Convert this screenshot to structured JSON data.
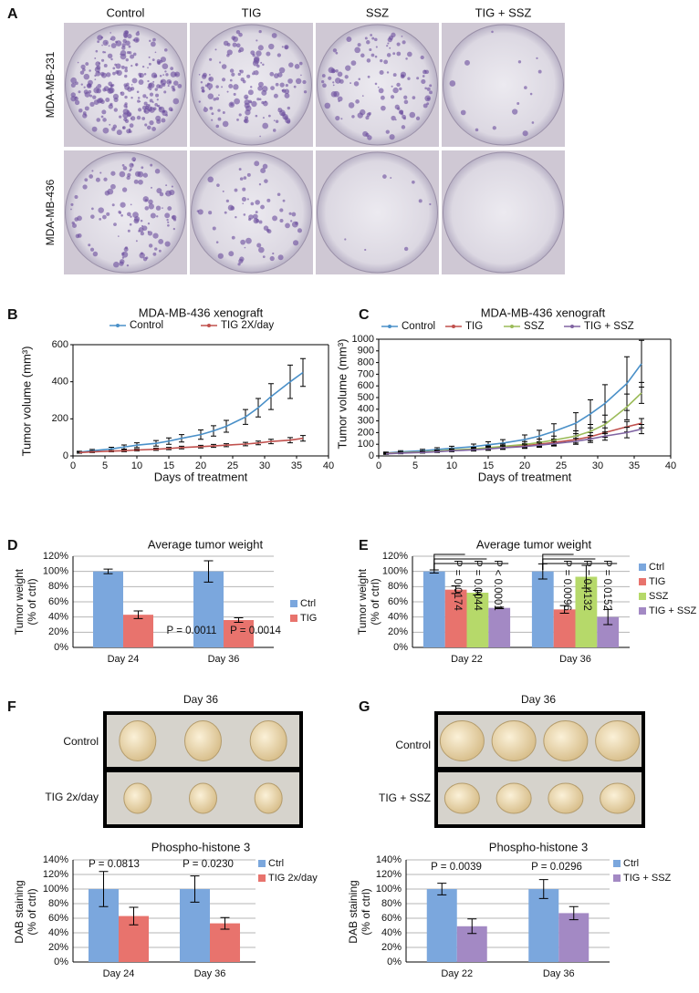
{
  "panel_a": {
    "label": "A",
    "columns": [
      "Control",
      "TIG",
      "SSZ",
      "TIG + SSZ"
    ],
    "rows": [
      "MDA-MB-231",
      "MDA-MB-436"
    ]
  },
  "panel_f": {
    "label": "F",
    "title": "Day 36",
    "rows": [
      "Control",
      "TIG 2x/day"
    ]
  },
  "panel_g": {
    "label": "G",
    "title": "Day 36",
    "rows": [
      "Control",
      "TIG + SSZ"
    ]
  },
  "chart_data": [
    {
      "type": "line",
      "panel": "B",
      "title": "MDA-MB-436 xenograft",
      "xlabel": "Days of treatment",
      "ylabel": "Tumor volume (mm³)",
      "x": [
        1,
        3,
        6,
        8,
        10,
        13,
        15,
        17,
        20,
        22,
        24,
        27,
        29,
        31,
        34,
        36
      ],
      "series": [
        {
          "name": "Control",
          "color": "#4a90c8",
          "values": [
            20,
            28,
            38,
            48,
            58,
            68,
            80,
            95,
            115,
            135,
            160,
            210,
            260,
            320,
            400,
            450
          ],
          "errors": [
            5,
            7,
            9,
            11,
            13,
            15,
            17,
            20,
            25,
            28,
            32,
            40,
            50,
            70,
            90,
            75
          ]
        },
        {
          "name": "TIG 2X/day",
          "color": "#c0504d",
          "values": [
            18,
            22,
            26,
            28,
            32,
            36,
            40,
            45,
            50,
            54,
            58,
            64,
            70,
            78,
            85,
            95
          ],
          "errors": [
            3,
            4,
            4,
            5,
            5,
            6,
            6,
            7,
            7,
            8,
            8,
            9,
            10,
            12,
            14,
            15
          ]
        }
      ],
      "xlim": [
        0,
        40
      ],
      "xticks": [
        0,
        5,
        10,
        15,
        20,
        25,
        30,
        35,
        40
      ],
      "ylim": [
        0,
        600
      ],
      "yticks": [
        0,
        200,
        400,
        600
      ],
      "legend": "top",
      "grid": false
    },
    {
      "type": "line",
      "panel": "C",
      "title": "MDA-MB-436 xenograft",
      "xlabel": "Days of treatment",
      "ylabel": "Tumor volume (mm³)",
      "x": [
        1,
        3,
        6,
        8,
        10,
        13,
        15,
        17,
        20,
        22,
        24,
        27,
        29,
        31,
        34,
        36
      ],
      "series": [
        {
          "name": "Control",
          "color": "#4a90c8",
          "values": [
            25,
            35,
            45,
            55,
            65,
            80,
            95,
            110,
            140,
            170,
            210,
            280,
            360,
            450,
            620,
            790
          ],
          "errors": [
            8,
            10,
            12,
            15,
            18,
            22,
            26,
            30,
            40,
            50,
            65,
            90,
            120,
            160,
            230,
            200
          ]
        },
        {
          "name": "TIG",
          "color": "#c0504d",
          "values": [
            22,
            28,
            34,
            40,
            48,
            56,
            65,
            75,
            88,
            100,
            115,
            140,
            165,
            200,
            250,
            280
          ],
          "errors": [
            5,
            6,
            7,
            8,
            10,
            12,
            14,
            16,
            18,
            22,
            25,
            30,
            35,
            40,
            45,
            40
          ]
        },
        {
          "name": "SSZ",
          "color": "#9bbb59",
          "values": [
            20,
            27,
            34,
            42,
            50,
            60,
            70,
            82,
            98,
            115,
            135,
            170,
            210,
            270,
            420,
            540
          ],
          "errors": [
            5,
            6,
            8,
            10,
            12,
            14,
            16,
            20,
            25,
            30,
            35,
            45,
            60,
            80,
            110,
            90
          ]
        },
        {
          "name": "TIG + SSZ",
          "color": "#8064a2",
          "values": [
            18,
            24,
            30,
            36,
            44,
            52,
            60,
            70,
            80,
            92,
            105,
            125,
            145,
            170,
            200,
            230
          ],
          "errors": [
            4,
            5,
            6,
            7,
            8,
            10,
            12,
            14,
            16,
            18,
            20,
            25,
            30,
            35,
            45,
            40
          ]
        }
      ],
      "xlim": [
        0,
        40
      ],
      "xticks": [
        0,
        5,
        10,
        15,
        20,
        25,
        30,
        35,
        40
      ],
      "ylim": [
        0,
        1000
      ],
      "yticks": [
        0,
        100,
        200,
        300,
        400,
        500,
        600,
        700,
        800,
        900,
        1000
      ],
      "legend": "top",
      "grid": false
    },
    {
      "type": "bar",
      "panel": "D",
      "title": "Average tumor weight",
      "ylabel": [
        "Tumor weight",
        "(% of ctrl)"
      ],
      "categories": [
        "Day 24",
        "Day 36"
      ],
      "series": [
        {
          "name": "Ctrl",
          "color": "#7ba7dd",
          "values": [
            100,
            100
          ],
          "errors": [
            3,
            14
          ]
        },
        {
          "name": "TIG",
          "color": "#e8736d",
          "values": [
            43,
            36
          ],
          "errors": [
            5,
            3
          ]
        }
      ],
      "annotations": [
        "P = 0.0011",
        "P = 0.0014"
      ],
      "ylim": [
        0,
        120
      ],
      "yticks": [
        {
          "value": 0,
          "label": "0%"
        },
        {
          "value": 20,
          "label": "20%"
        },
        {
          "value": 40,
          "label": "40%"
        },
        {
          "value": 60,
          "label": "60%"
        },
        {
          "value": 80,
          "label": "80%"
        },
        {
          "value": 100,
          "label": "100%"
        },
        {
          "value": 120,
          "label": "120%"
        }
      ],
      "legend": "right",
      "grid": true
    },
    {
      "type": "bar",
      "panel": "E",
      "title": "Average tumor weight",
      "ylabel": [
        "Tumor weight",
        "(% of ctrl)"
      ],
      "categories": [
        "Day 22",
        "Day 36"
      ],
      "series": [
        {
          "name": "Ctrl",
          "color": "#7ba7dd",
          "values": [
            100,
            100
          ],
          "errors": [
            2,
            10
          ]
        },
        {
          "name": "TIG",
          "color": "#e8736d",
          "values": [
            76,
            50
          ],
          "errors": [
            5,
            5
          ]
        },
        {
          "name": "SSZ",
          "color": "#b6d96a",
          "values": [
            72,
            93
          ],
          "errors": [
            3,
            15
          ]
        },
        {
          "name": "TIG + SSZ",
          "color": "#a389c4",
          "values": [
            52,
            40
          ],
          "errors": [
            1,
            10
          ]
        }
      ],
      "annotations": [
        "P = 0.0174",
        "P = 0.0044",
        "P < 0.0001",
        "P = 0.0096",
        "P = 0.4132",
        "P = 0.0152"
      ],
      "ylim": [
        0,
        120
      ],
      "yticks": [
        {
          "value": 0,
          "label": "0%"
        },
        {
          "value": 20,
          "label": "20%"
        },
        {
          "value": 40,
          "label": "40%"
        },
        {
          "value": 60,
          "label": "60%"
        },
        {
          "value": 80,
          "label": "80%"
        },
        {
          "value": 100,
          "label": "100%"
        },
        {
          "value": 120,
          "label": "120%"
        }
      ],
      "legend": "right",
      "grid": true
    },
    {
      "type": "bar",
      "title": "Phospho-histone 3",
      "ylabel": [
        "DAB staining",
        "(% of ctrl)"
      ],
      "categories": [
        "Day 24",
        "Day 36"
      ],
      "series": [
        {
          "name": "Ctrl",
          "color": "#7ba7dd",
          "values": [
            100,
            100
          ],
          "errors": [
            24,
            18
          ]
        },
        {
          "name": "TIG 2x/day",
          "color": "#e8736d",
          "values": [
            63,
            53
          ],
          "errors": [
            12,
            8
          ]
        }
      ],
      "annotations": [
        "P = 0.0813",
        "P = 0.0230"
      ],
      "ylim": [
        0,
        140
      ],
      "yticks": [
        {
          "value": 0,
          "label": "0%"
        },
        {
          "value": 20,
          "label": "20%"
        },
        {
          "value": 40,
          "label": "40%"
        },
        {
          "value": 60,
          "label": "60%"
        },
        {
          "value": 80,
          "label": "80%"
        },
        {
          "value": 100,
          "label": "100%"
        },
        {
          "value": 120,
          "label": "120%"
        },
        {
          "value": 140,
          "label": "140%"
        }
      ],
      "legend": "right",
      "grid": true
    },
    {
      "type": "bar",
      "title": "Phospho-histone 3",
      "ylabel": [
        "DAB staining",
        "(% of ctrl)"
      ],
      "categories": [
        "Day 22",
        "Day 36"
      ],
      "series": [
        {
          "name": "Ctrl",
          "color": "#7ba7dd",
          "values": [
            100,
            100
          ],
          "errors": [
            8,
            13
          ]
        },
        {
          "name": "TIG + SSZ",
          "color": "#a389c4",
          "values": [
            49,
            67
          ],
          "errors": [
            10,
            9
          ]
        }
      ],
      "annotations": [
        "P = 0.0039",
        "P = 0.0296"
      ],
      "ylim": [
        0,
        140
      ],
      "yticks": [
        {
          "value": 0,
          "label": "0%"
        },
        {
          "value": 20,
          "label": "20%"
        },
        {
          "value": 40,
          "label": "40%"
        },
        {
          "value": 60,
          "label": "60%"
        },
        {
          "value": 80,
          "label": "80%"
        },
        {
          "value": 100,
          "label": "100%"
        },
        {
          "value": 120,
          "label": "120%"
        },
        {
          "value": 140,
          "label": "140%"
        }
      ],
      "legend": "right",
      "grid": true
    }
  ]
}
